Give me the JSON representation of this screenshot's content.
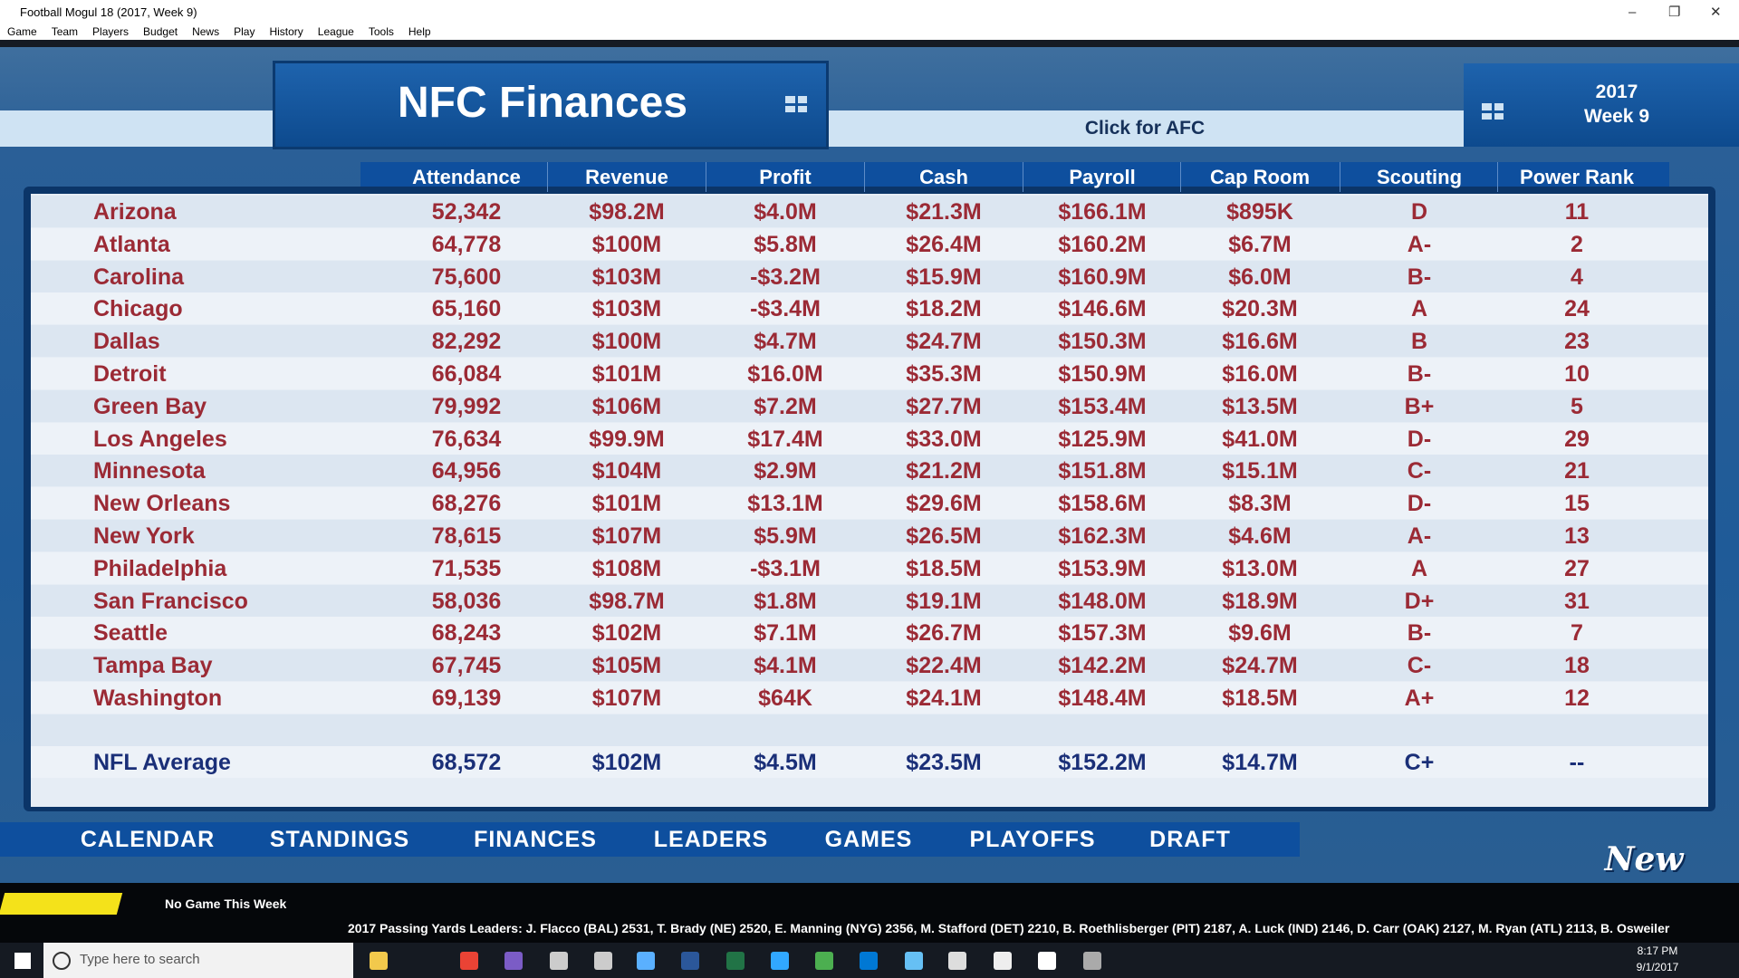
{
  "window": {
    "title": "Football Mogul 18 (2017, Week 9)"
  },
  "menu": [
    "Game",
    "Team",
    "Players",
    "Budget",
    "News",
    "Play",
    "History",
    "League",
    "Tools",
    "Help"
  ],
  "header": {
    "title": "NFC Finances",
    "switch": "Click for AFC",
    "year": "2017",
    "week": "Week 9"
  },
  "table": {
    "columns": [
      "Attendance",
      "Revenue",
      "Profit",
      "Cash",
      "Payroll",
      "Cap Room",
      "Scouting",
      "Power Rank"
    ],
    "rows": [
      [
        "Arizona",
        "52,342",
        "$98.2M",
        "$4.0M",
        "$21.3M",
        "$166.1M",
        "$895K",
        "D",
        "11"
      ],
      [
        "Atlanta",
        "64,778",
        "$100M",
        "$5.8M",
        "$26.4M",
        "$160.2M",
        "$6.7M",
        "A-",
        "2"
      ],
      [
        "Carolina",
        "75,600",
        "$103M",
        "-$3.2M",
        "$15.9M",
        "$160.9M",
        "$6.0M",
        "B-",
        "4"
      ],
      [
        "Chicago",
        "65,160",
        "$103M",
        "-$3.4M",
        "$18.2M",
        "$146.6M",
        "$20.3M",
        "A",
        "24"
      ],
      [
        "Dallas",
        "82,292",
        "$100M",
        "$4.7M",
        "$24.7M",
        "$150.3M",
        "$16.6M",
        "B",
        "23"
      ],
      [
        "Detroit",
        "66,084",
        "$101M",
        "$16.0M",
        "$35.3M",
        "$150.9M",
        "$16.0M",
        "B-",
        "10"
      ],
      [
        "Green Bay",
        "79,992",
        "$106M",
        "$7.2M",
        "$27.7M",
        "$153.4M",
        "$13.5M",
        "B+",
        "5"
      ],
      [
        "Los Angeles",
        "76,634",
        "$99.9M",
        "$17.4M",
        "$33.0M",
        "$125.9M",
        "$41.0M",
        "D-",
        "29"
      ],
      [
        "Minnesota",
        "64,956",
        "$104M",
        "$2.9M",
        "$21.2M",
        "$151.8M",
        "$15.1M",
        "C-",
        "21"
      ],
      [
        "New Orleans",
        "68,276",
        "$101M",
        "$13.1M",
        "$29.6M",
        "$158.6M",
        "$8.3M",
        "D-",
        "15"
      ],
      [
        "New York",
        "78,615",
        "$107M",
        "$5.9M",
        "$26.5M",
        "$162.3M",
        "$4.6M",
        "A-",
        "13"
      ],
      [
        "Philadelphia",
        "71,535",
        "$108M",
        "-$3.1M",
        "$18.5M",
        "$153.9M",
        "$13.0M",
        "A",
        "27"
      ],
      [
        "San Francisco",
        "58,036",
        "$98.7M",
        "$1.8M",
        "$19.1M",
        "$148.0M",
        "$18.9M",
        "D+",
        "31"
      ],
      [
        "Seattle",
        "68,243",
        "$102M",
        "$7.1M",
        "$26.7M",
        "$157.3M",
        "$9.6M",
        "B-",
        "7"
      ],
      [
        "Tampa Bay",
        "67,745",
        "$105M",
        "$4.1M",
        "$22.4M",
        "$142.2M",
        "$24.7M",
        "C-",
        "18"
      ],
      [
        "Washington",
        "69,139",
        "$107M",
        "$64K",
        "$24.1M",
        "$148.4M",
        "$18.5M",
        "A+",
        "12"
      ]
    ],
    "average": [
      "NFL Average",
      "68,572",
      "$102M",
      "$4.5M",
      "$23.5M",
      "$152.2M",
      "$14.7M",
      "C+",
      "--"
    ]
  },
  "nav": [
    "CALENDAR",
    "STANDINGS",
    "FINANCES",
    "LEADERS",
    "GAMES",
    "PLAYOFFS",
    "DRAFT"
  ],
  "team": "New England",
  "status": {
    "game": "No Game This Week",
    "ticker": "2017 Passing Yards Leaders:   J. Flacco (BAL) 2531,    T. Brady (NE) 2520,    E. Manning (NYG) 2356,    M. Stafford (DET) 2210,    B. Roethlisberger (PIT) 2187,    A. Luck (IND) 2146,    D. Carr (OAK) 2127,    M. Ryan (ATL) 2113,    B. Osweiler"
  },
  "taskbar": {
    "search": "Type here to search",
    "time": "8:17 PM",
    "date": "9/1/2017"
  }
}
